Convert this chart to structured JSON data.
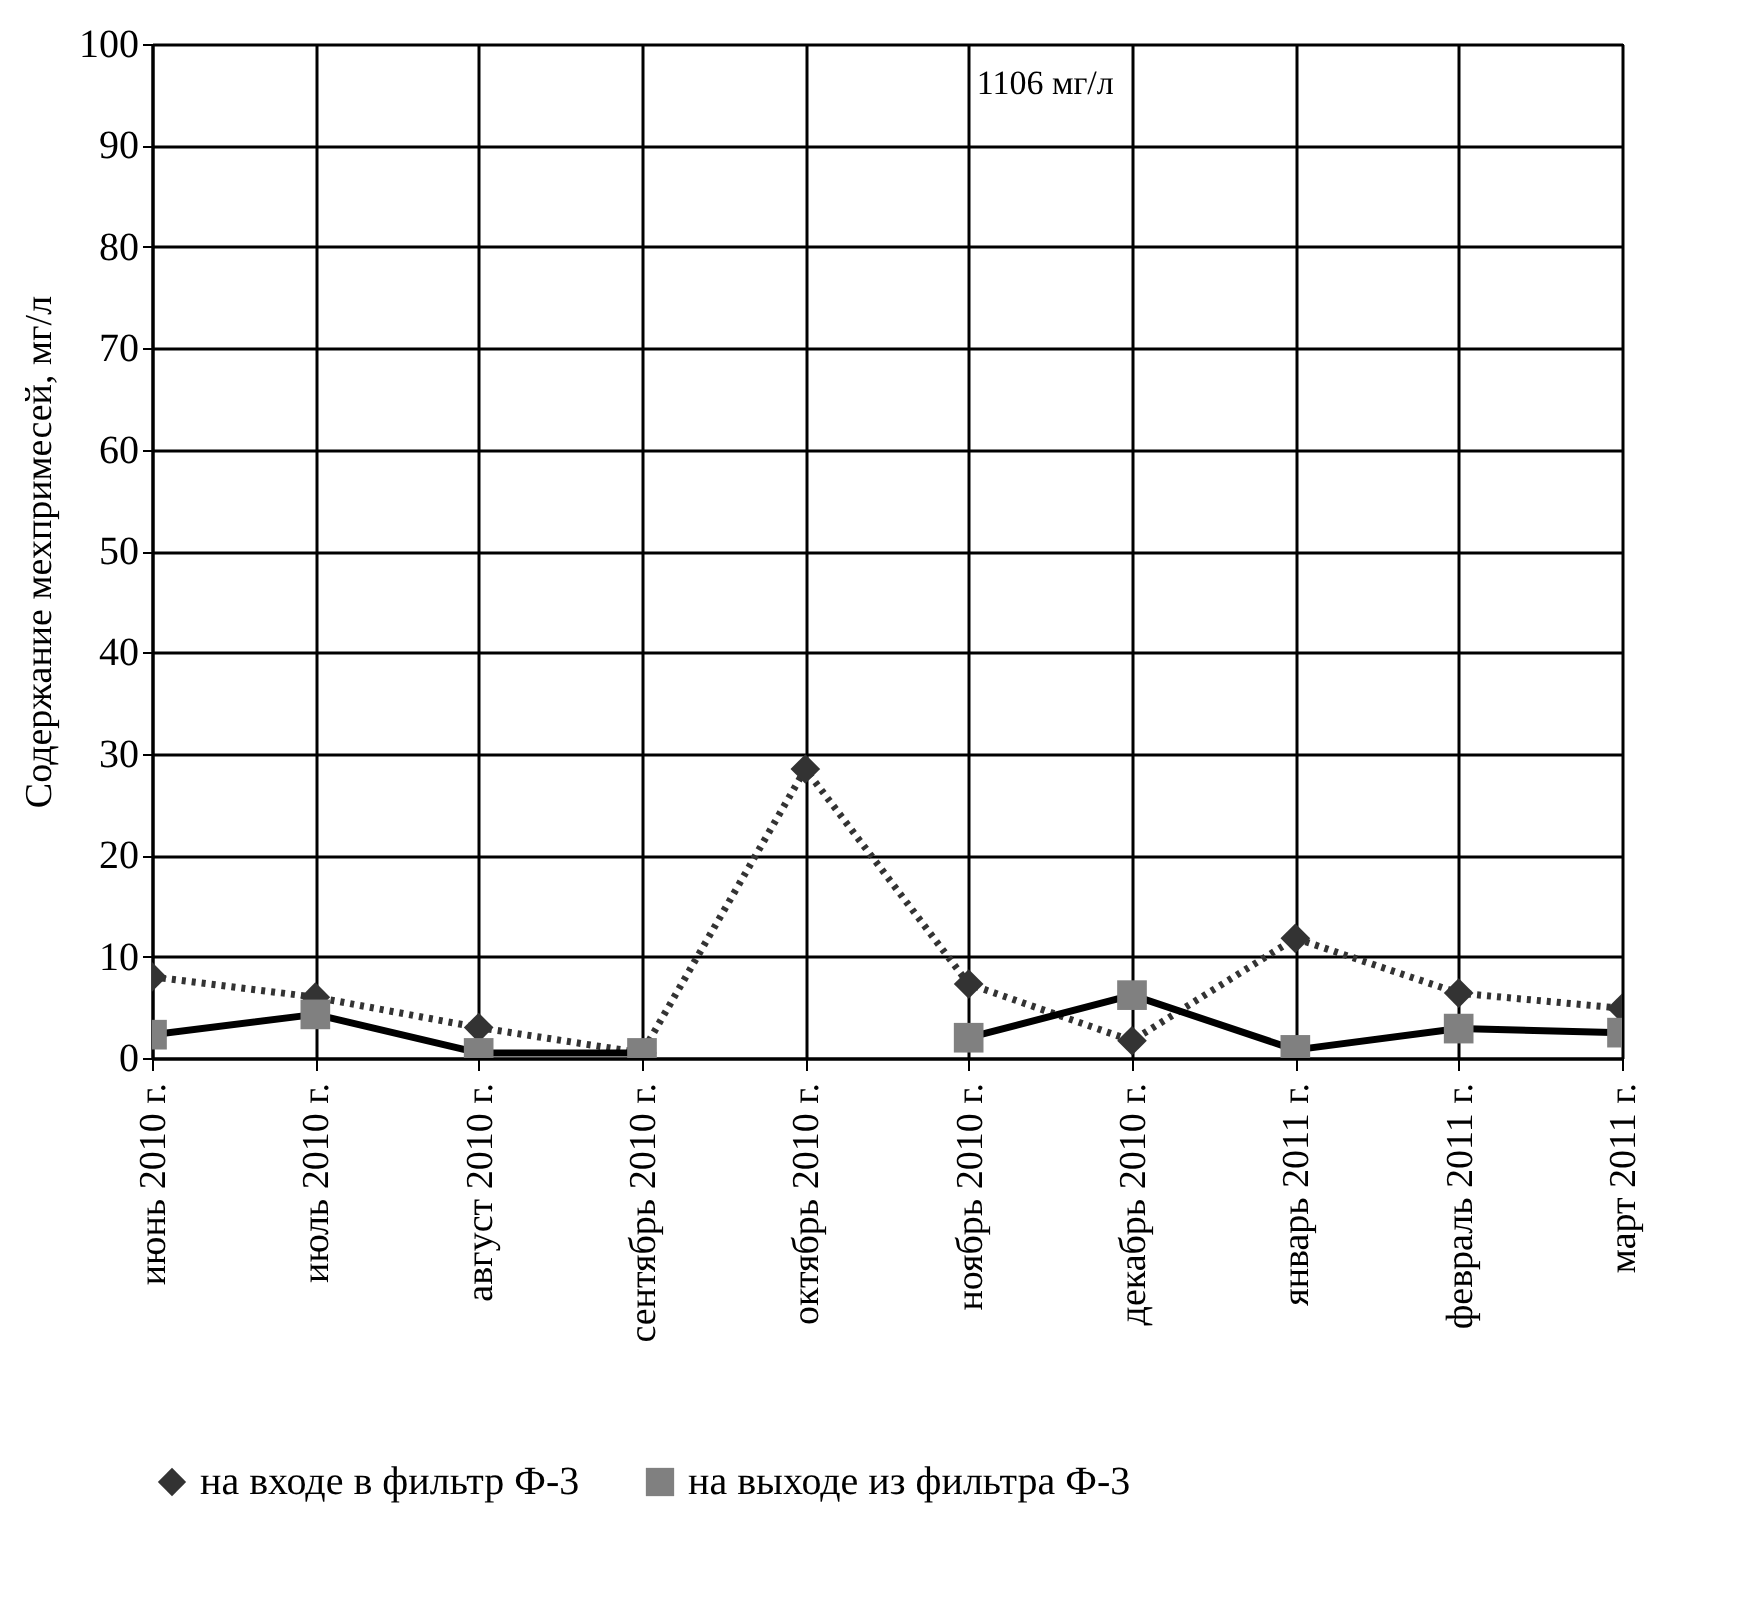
{
  "chart_data": {
    "type": "line",
    "ylabel": "Содержание мехпримесей, мг/л",
    "categories": [
      "июнь 2010 г.",
      "июль 2010 г.",
      "август 2010 г.",
      "сентябрь 2010 г.",
      "октябрь 2010 г.",
      "ноябрь 2010 г.",
      "декабрь 2010 г.",
      "январь 2011 г.",
      "февраль 2011 г.",
      "март 2011 г."
    ],
    "series": [
      {
        "name": "на входе в фильтр Ф-3",
        "color": "#333333",
        "marker": "diamond",
        "line_style": "dotted",
        "values": [
          8,
          6,
          3,
          0.5,
          28.5,
          7.3,
          1.7,
          11.8,
          6.4,
          4.9
        ]
      },
      {
        "name": "на выходе из фильтра Ф-3",
        "color": "#000000",
        "marker": "square",
        "line_style": "solid",
        "values": [
          2.3,
          4.3,
          0.5,
          0.5,
          null,
          2,
          6.2,
          0.8,
          2.9,
          2.5
        ]
      }
    ],
    "ylim": [
      0,
      100
    ],
    "yticks": [
      0,
      10,
      20,
      30,
      40,
      50,
      60,
      70,
      80,
      90,
      100
    ],
    "grid": true,
    "legend": "bottom",
    "annotations": [
      "1106 мг/л"
    ]
  }
}
